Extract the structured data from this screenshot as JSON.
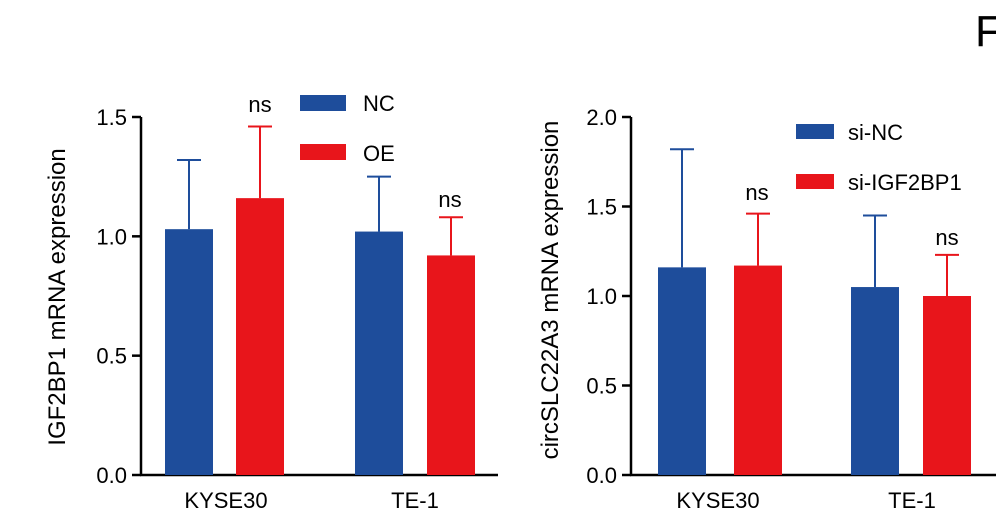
{
  "colors": {
    "nc": "#1e4d9b",
    "oe": "#e8151b",
    "axis": "#000000",
    "error": "#1e4d9b"
  },
  "panel_letter": "F",
  "chart_data": [
    {
      "type": "bar",
      "ylabel": "IGF2BP1 mRNA expression",
      "ylim": [
        0,
        1.5
      ],
      "yticks": [
        0.0,
        0.5,
        1.0,
        1.5
      ],
      "ytick_labels": [
        "0.0",
        "0.5",
        "1.0",
        "1.5"
      ],
      "categories": [
        "KYSE30",
        "TE-1"
      ],
      "series": [
        {
          "name": "NC",
          "color": "#1e4d9b",
          "values": [
            1.03,
            1.02
          ],
          "errors": [
            0.29,
            0.23
          ]
        },
        {
          "name": "OE",
          "color": "#e8151b",
          "values": [
            1.16,
            0.92
          ],
          "errors": [
            0.3,
            0.16
          ]
        }
      ],
      "annotations": [
        "ns",
        "ns"
      ],
      "legend": [
        "NC",
        "OE"
      ]
    },
    {
      "type": "bar",
      "ylabel": "circSLC22A3 mRNA expression",
      "ylim": [
        0,
        2.0
      ],
      "yticks": [
        0.0,
        0.5,
        1.0,
        1.5,
        2.0
      ],
      "ytick_labels": [
        "0.0",
        "0.5",
        "1.0",
        "1.5",
        "2.0"
      ],
      "categories": [
        "KYSE30",
        "TE-1"
      ],
      "series": [
        {
          "name": "si-NC",
          "color": "#1e4d9b",
          "values": [
            1.16,
            1.05
          ],
          "errors": [
            0.66,
            0.4
          ]
        },
        {
          "name": "si-IGF2BP1",
          "color": "#e8151b",
          "values": [
            1.17,
            1.0
          ],
          "errors": [
            0.29,
            0.23
          ]
        }
      ],
      "annotations": [
        "ns",
        "ns"
      ],
      "legend": [
        "si-NC",
        "si-IGF2BP1"
      ]
    }
  ]
}
